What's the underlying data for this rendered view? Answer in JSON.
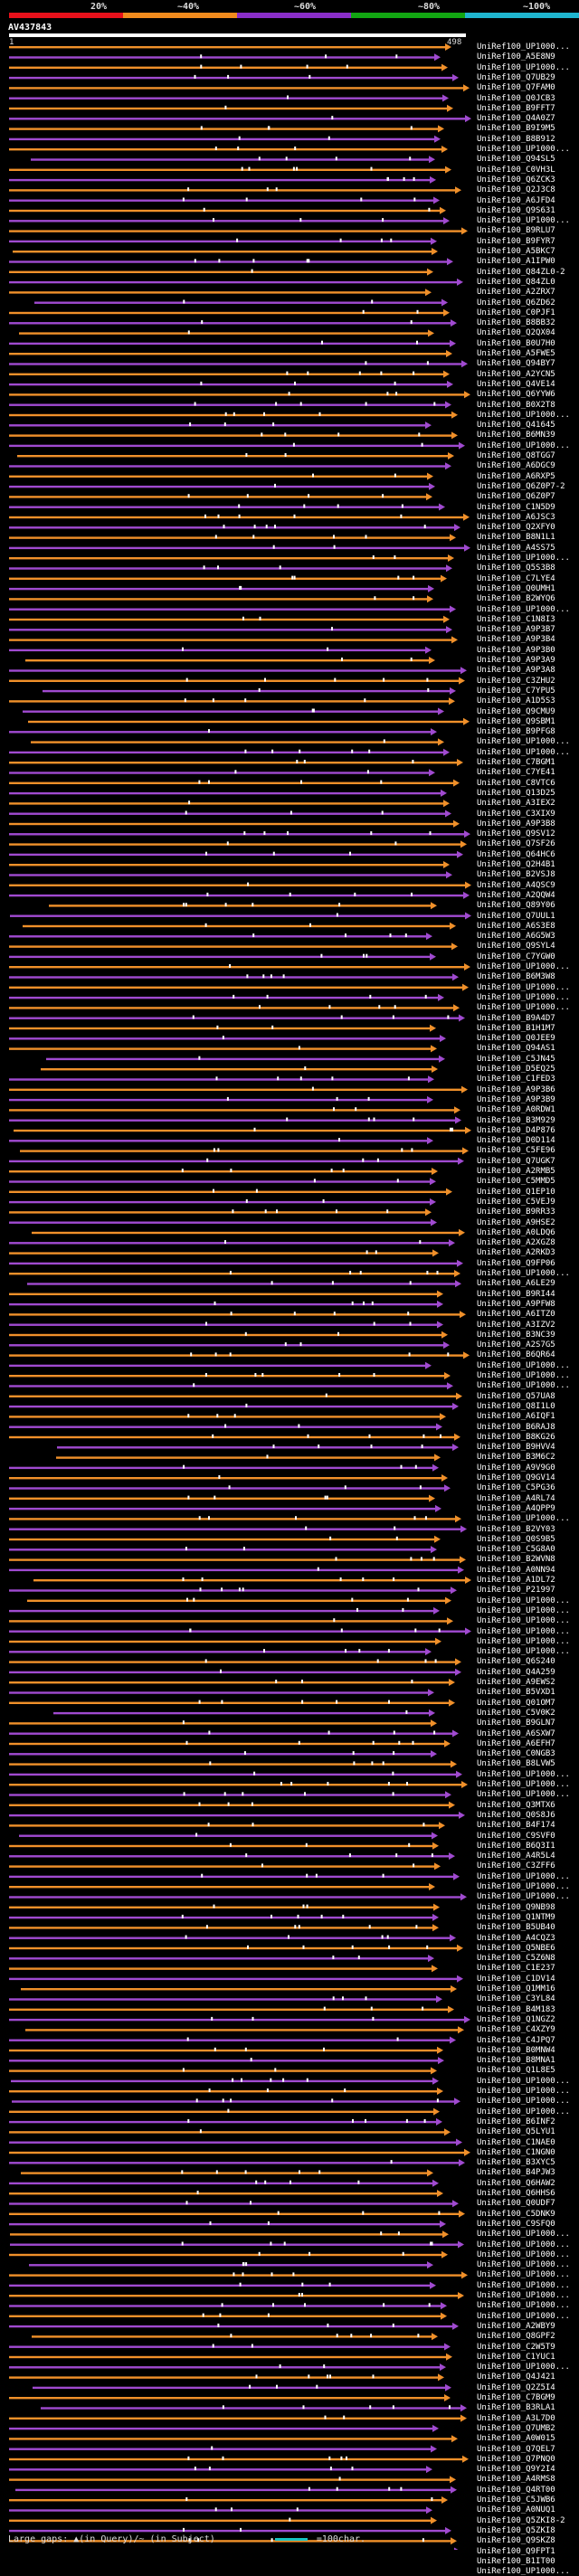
{
  "legend": {
    "labels": [
      "20%",
      "~40%",
      "~60%",
      "~80%",
      "~100%"
    ],
    "colors": [
      "#e8111b",
      "#f28b1d",
      "#8a2ec9",
      "#12a612",
      "#1fb5cf"
    ]
  },
  "query": {
    "title": "AV437843",
    "ruler_start": "1",
    "ruler_end": "498"
  },
  "hit_colors": {
    "orange": "#f0902a",
    "purple": "#a04ad0"
  },
  "hits": [
    "UniRef100_UP1000...",
    "UniRef100_A5E8N9",
    "UniRef100_UP1000...",
    "UniRef100_Q7UB29",
    "UniRef100_Q7FAM0",
    "UniRef100_Q0JCB3",
    "UniRef100_B9FFT7",
    "UniRef100_Q4A0Z7",
    "UniRef100_B9I9M5",
    "UniRef100_B8B912",
    "UniRef100_UP1000...",
    "UniRef100_Q94SL5",
    "UniRef100_C0VH3L",
    "UniRef100_Q6ZCK3",
    "UniRef100_Q2J3C8",
    "UniRef100_A6JFD4",
    "UniRef100_Q9S631",
    "UniRef100_UP1000...",
    "UniRef100_B9RLU7",
    "UniRef100_B9FYR7",
    "UniRef100_A5BKC7",
    "UniRef100_A1IPW0",
    "UniRef100_Q84ZL0-2",
    "UniRef100_Q84ZL0",
    "UniRef100_A2ZRX7",
    "UniRef100_Q6ZD62",
    "UniRef100_C0PJF1",
    "UniRef100_B8BB32",
    "UniRef100_Q2QX04",
    "UniRef100_B0U7H0",
    "UniRef100_A5FWE5",
    "UniRef100_Q94BY7",
    "UniRef100_A2YCN5",
    "UniRef100_Q4VE14",
    "UniRef100_Q6YYW6",
    "UniRef100_B0X2T8",
    "UniRef100_UP1000...",
    "UniRef100_Q41645",
    "UniRef100_B6MN39",
    "UniRef100_UP1000...",
    "UniRef100_Q8TGG7",
    "UniRef100_A6DGC9",
    "UniRef100_A6RXP5",
    "UniRef100_Q6Z0P7-2",
    "UniRef100_Q6Z0P7",
    "UniRef100_C1N5D9",
    "UniRef100_A6JSC3",
    "UniRef100_Q2XFY0",
    "UniRef100_B8N1L1",
    "UniRef100_A4SS75",
    "UniRef100_UP1000...",
    "UniRef100_Q5S3B8",
    "UniRef100_C7LYE4",
    "UniRef100_Q0UMH1",
    "UniRef100_B2WYQ6",
    "UniRef100_UP1000...",
    "UniRef100_C1N8I3",
    "UniRef100_A9P3B7",
    "UniRef100_A9P3B4",
    "UniRef100_A9P3B0",
    "UniRef100_A9P3A9",
    "UniRef100_A9P3A8",
    "UniRef100_C3ZHU2",
    "UniRef100_C7YPU5",
    "UniRef100_A1D5S3",
    "UniRef100_Q9CMU9",
    "UniRef100_Q9SBM1",
    "UniRef100_B9PFG8",
    "UniRef100_UP1000...",
    "UniRef100_UP1000...",
    "UniRef100_C7BGM1",
    "UniRef100_C7YE41",
    "UniRef100_C8VTC6",
    "UniRef100_Q13D25",
    "UniRef100_A3IEX2",
    "UniRef100_C3XIX9",
    "UniRef100_A9P3B8",
    "UniRef100_Q9SV12",
    "UniRef100_Q7SF26",
    "UniRef100_Q64HC6",
    "UniRef100_Q2H4B1",
    "UniRef100_B2VSJ8",
    "UniRef100_A4QSC9",
    "UniRef100_A2QQW4",
    "UniRef100_Q89Y06",
    "UniRef100_Q7UUL1",
    "UniRef100_A6S3E8",
    "UniRef100_A6G5W3",
    "UniRef100_Q9SYL4",
    "UniRef100_C7YGW0",
    "UniRef100_UP1000...",
    "UniRef100_B6M3W8",
    "UniRef100_UP1000...",
    "UniRef100_UP1000...",
    "UniRef100_UP1000...",
    "UniRef100_B9A4D7",
    "UniRef100_B1H1M7",
    "UniRef100_Q0JEE9",
    "UniRef100_Q94AS1",
    "UniRef100_C5JN45",
    "UniRef100_D5EQ25",
    "UniRef100_C1FED3",
    "UniRef100_A9P3B6",
    "UniRef100_A9P3B9",
    "UniRef100_A0RDW1",
    "UniRef100_B3M929",
    "UniRef100_D4P876",
    "UniRef100_D0D114",
    "UniRef100_C5FE96",
    "UniRef100_Q7UGK7",
    "UniRef100_A2RMB5",
    "UniRef100_C5MMD5",
    "UniRef100_Q1EP10",
    "UniRef100_C5VEJ9",
    "UniRef100_B9RR33",
    "UniRef100_A9HSE2",
    "UniRef100_A0LDQ6",
    "UniRef100_A2XGZ8",
    "UniRef100_A2RKD3",
    "UniRef100_Q9FP06",
    "UniRef100_UP1000...",
    "UniRef100_A6LE29",
    "UniRef100_B9RI44",
    "UniRef100_A9PFW8",
    "UniRef100_A6ITZ0",
    "UniRef100_A3IZV2",
    "UniRef100_B3NC39",
    "UniRef100_A2S7G5",
    "UniRef100_B6QR64",
    "UniRef100_UP1000...",
    "UniRef100_UP1000...",
    "UniRef100_UP1000...",
    "UniRef100_Q57UA8",
    "UniRef100_Q8I1L0",
    "UniRef100_A6IQF1",
    "UniRef100_B6RAJ8",
    "UniRef100_B8KG26",
    "UniRef100_B9HVV4",
    "UniRef100_B3M6C2",
    "UniRef100_A9V9G0",
    "UniRef100_Q9GV14",
    "UniRef100_C5PG36",
    "UniRef100_A4RL74",
    "UniRef100_A4QPP9",
    "UniRef100_UP1000...",
    "UniRef100_B2VY03",
    "UniRef100_Q0S9B5",
    "UniRef100_C5G8A0",
    "UniRef100_B2WVN8",
    "UniRef100_A0NN94",
    "UniRef100_A1DL72",
    "UniRef100_P21997",
    "UniRef100_UP1000...",
    "UniRef100_UP1000...",
    "UniRef100_UP1000...",
    "UniRef100_UP1000...",
    "UniRef100_UP1000...",
    "UniRef100_UP1000...",
    "UniRef100_Q6S240",
    "UniRef100_Q4A259",
    "UniRef100_A9EWS2",
    "UniRef100_B5VXD1",
    "UniRef100_Q01OM7",
    "UniRef100_C5V0K2",
    "UniRef100_B9GLN7",
    "UniRef100_A6SXW7",
    "UniRef100_A6EFH7",
    "UniRef100_C0NGB3",
    "UniRef100_B8LVW5",
    "UniRef100_UP1000...",
    "UniRef100_UP1000...",
    "UniRef100_UP1000...",
    "UniRef100_Q3MTX6",
    "UniRef100_Q0S8J6",
    "UniRef100_B4F174",
    "UniRef100_C9SVF0",
    "UniRef100_B6Q3I1",
    "UniRef100_A4R5L4",
    "UniRef100_C3ZFF6",
    "UniRef100_UP1000...",
    "UniRef100_UP1000...",
    "UniRef100_UP1000...",
    "UniRef100_Q9NB98",
    "UniRef100_Q1NTM9",
    "UniRef100_B5UB40",
    "UniRef100_A4CQZ3",
    "UniRef100_Q5NBE6",
    "UniRef100_C5Z6N8",
    "UniRef100_C1E237",
    "UniRef100_C1DV14",
    "UniRef100_Q1MM16",
    "UniRef100_C3YL84",
    "UniRef100_B4M183",
    "UniRef100_Q1NGZ2",
    "UniRef100_C4XZY9",
    "UniRef100_C4JPQ7",
    "UniRef100_B0MNW4",
    "UniRef100_B8MNA1",
    "UniRef100_Q1L8E5",
    "UniRef100_UP1000...",
    "UniRef100_UP1000...",
    "UniRef100_UP1000...",
    "UniRef100_UP1000...",
    "UniRef100_B6INF2",
    "UniRef100_Q5LYU1",
    "UniRef100_C1NAE0",
    "UniRef100_C1NGN0",
    "UniRef100_B3XYC5",
    "UniRef100_B4PJW3",
    "UniRef100_Q6HAW2",
    "UniRef100_Q6HHS6",
    "UniRef100_Q0UDF7",
    "UniRef100_C5DNK9",
    "UniRef100_C9SFQ0",
    "UniRef100_UP1000...",
    "UniRef100_UP1000...",
    "UniRef100_UP1000...",
    "UniRef100_UP1000...",
    "UniRef100_UP1000...",
    "UniRef100_UP1000...",
    "UniRef100_UP1000...",
    "UniRef100_UP1000...",
    "UniRef100_UP1000...",
    "UniRef100_A2WBY9",
    "UniRef100_Q8GPF2",
    "UniRef100_C2W5T9",
    "UniRef100_C1YUC1",
    "UniRef100_UP1000...",
    "UniRef100_Q4J421",
    "UniRef100_Q2Z5I4",
    "UniRef100_C7BGM9",
    "UniRef100_B3RLA1",
    "UniRef100_A3L7D0",
    "UniRef100_Q7UMB2",
    "UniRef100_A0W015",
    "UniRef100_Q7QEL7",
    "UniRef100_Q7PNQ0",
    "UniRef100_Q9Y2I4",
    "UniRef100_A4RMS8",
    "UniRef100_Q4RT00",
    "UniRef100_C5JWB6",
    "UniRef100_A0NUQ1",
    "UniRef100_Q5ZKI8-2",
    "UniRef100_Q5ZKI8",
    "UniRef100_Q9SKZ8",
    "UniRef100_Q9FPT1",
    "UniRef100_B1IT00",
    "UniRef100_UP1000..."
  ],
  "footer": {
    "gap_text": "Large gaps: ▲(in Query)/~ (in Subject)",
    "scale_text": "=100char."
  }
}
